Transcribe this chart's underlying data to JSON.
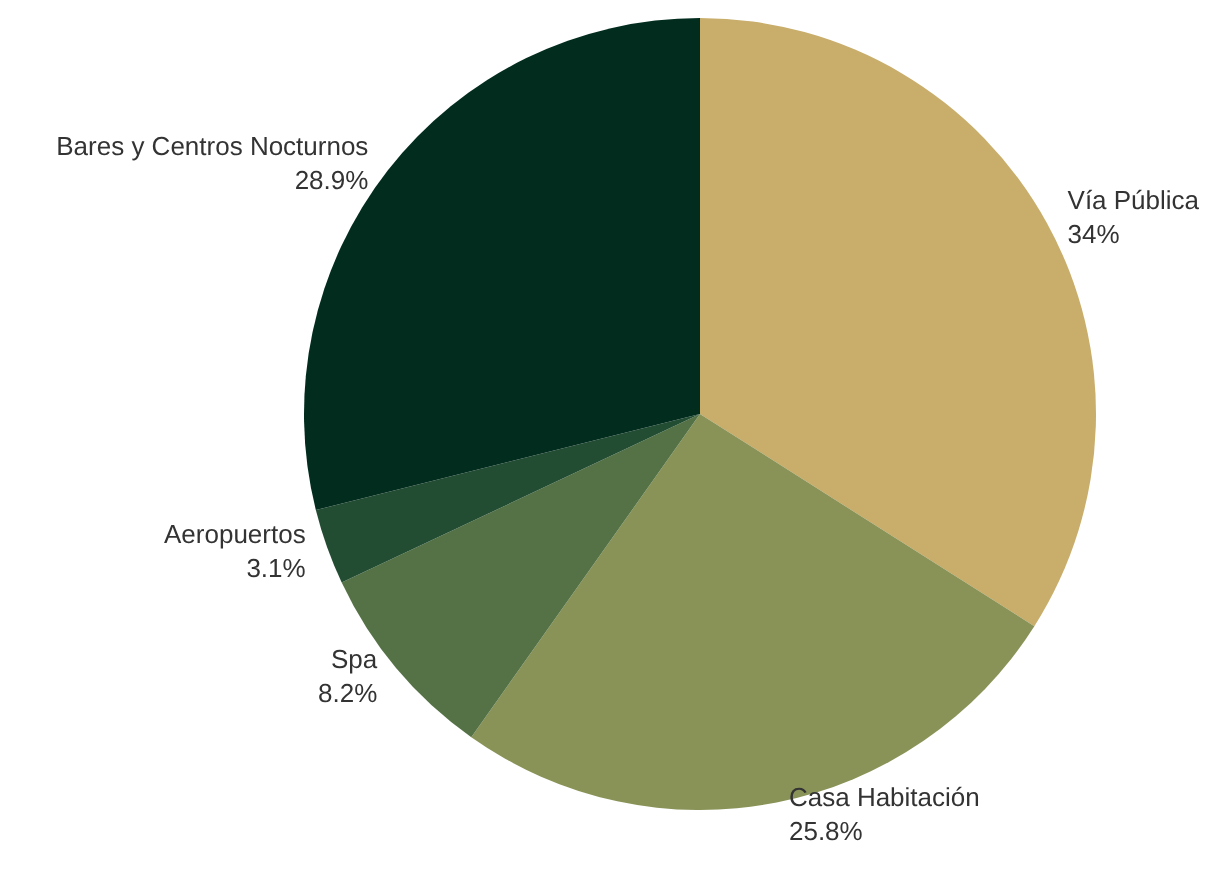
{
  "chart_data": {
    "type": "pie",
    "categories": [
      "Vía Pública",
      "Casa Habitación",
      "Spa",
      "Aeropuertos",
      "Bares y Centros Nocturnos"
    ],
    "values": [
      34,
      25.8,
      8.2,
      3.1,
      28.9
    ],
    "colors": [
      "#c8ad6b",
      "#899357",
      "#547245",
      "#234d32",
      "#022d1e"
    ],
    "value_labels": [
      "34%",
      "25.8%",
      "8.2%",
      "3.1%",
      "28.9%"
    ],
    "legend": false
  }
}
